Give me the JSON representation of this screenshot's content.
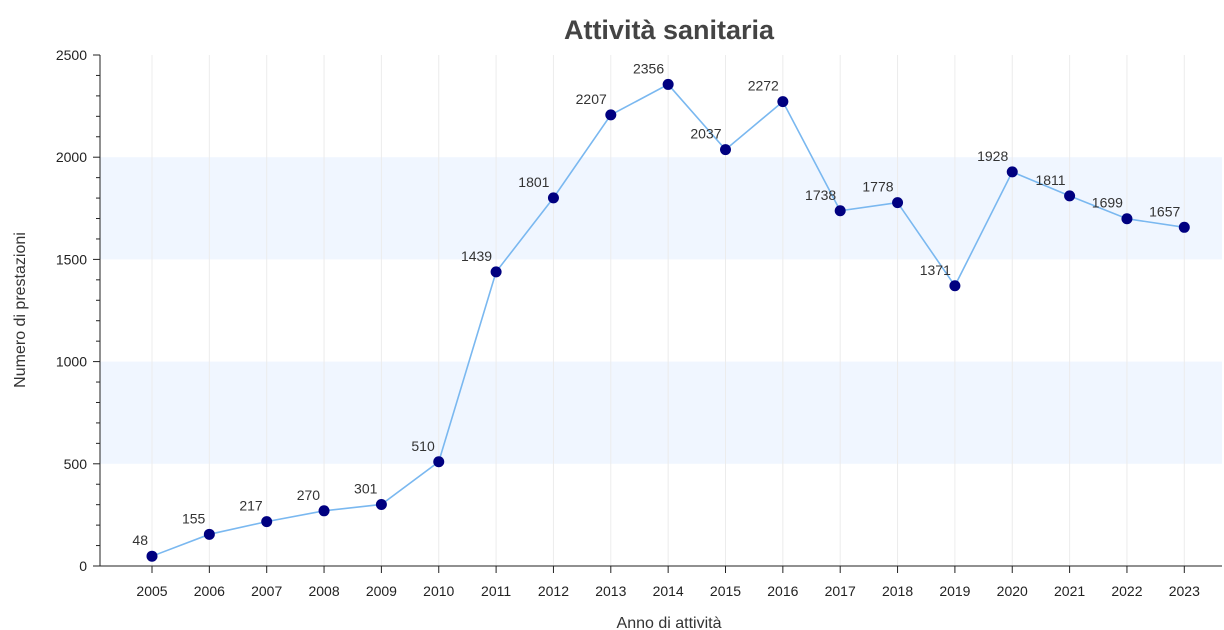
{
  "chart_data": {
    "type": "line",
    "title": "Attività sanitaria",
    "xlabel": "Anno di attività",
    "ylabel": "Numero di prestazioni",
    "categories": [
      "2005",
      "2006",
      "2007",
      "2008",
      "2009",
      "2010",
      "2011",
      "2012",
      "2013",
      "2014",
      "2015",
      "2016",
      "2017",
      "2018",
      "2019",
      "2020",
      "2021",
      "2022",
      "2023"
    ],
    "values": [
      48,
      155,
      217,
      270,
      301,
      510,
      1439,
      1801,
      2207,
      2356,
      2037,
      2272,
      1738,
      1778,
      1371,
      1928,
      1811,
      1699,
      1657
    ],
    "ylim": [
      0,
      2500
    ],
    "yticks": [
      0,
      500,
      1000,
      1500,
      2000,
      2500
    ],
    "grid": true,
    "band_color": "#f0f6ff",
    "line_color": "#7ab8f0",
    "marker_color": "#000080"
  }
}
